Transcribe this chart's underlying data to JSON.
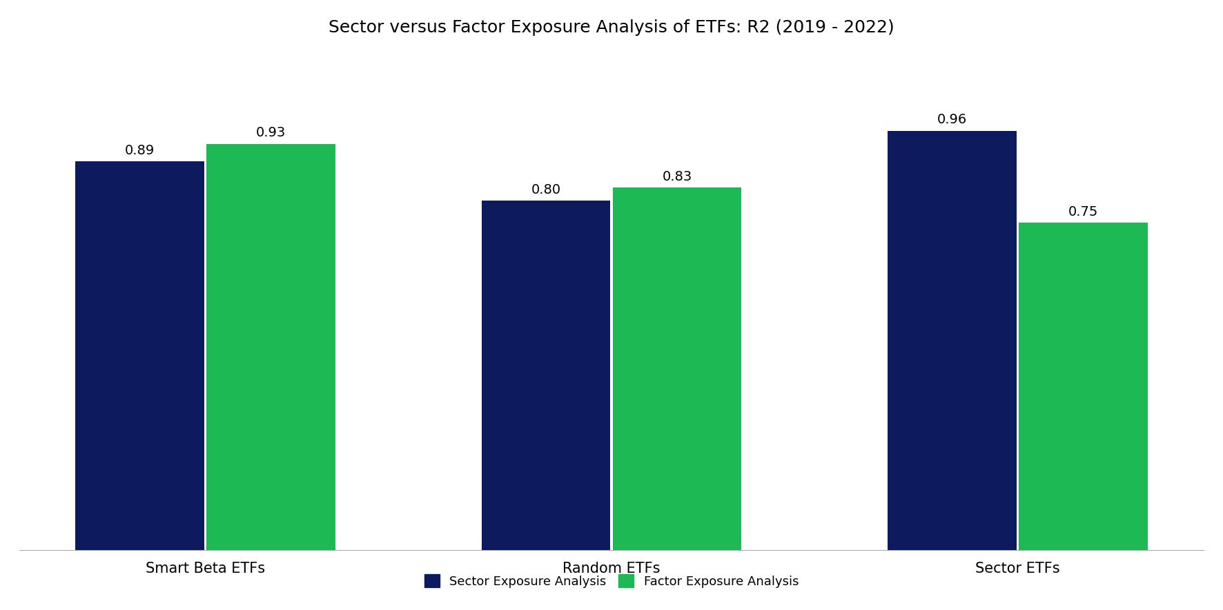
{
  "title": "Sector versus Factor Exposure Analysis of ETFs: R2 (2019 - 2022)",
  "categories": [
    "Smart Beta ETFs",
    "Random ETFs",
    "Sector ETFs"
  ],
  "sector_values": [
    0.89,
    0.8,
    0.96
  ],
  "factor_values": [
    0.93,
    0.83,
    0.75
  ],
  "sector_color": "#0d1b5e",
  "factor_color": "#1db954",
  "legend_labels": [
    "Sector Exposure Analysis",
    "Factor Exposure Analysis"
  ],
  "bar_width": 0.38,
  "ylim": [
    0,
    1.12
  ],
  "title_fontsize": 18,
  "tick_fontsize": 15,
  "value_fontsize": 14,
  "legend_fontsize": 13,
  "background_color": "#ffffff"
}
